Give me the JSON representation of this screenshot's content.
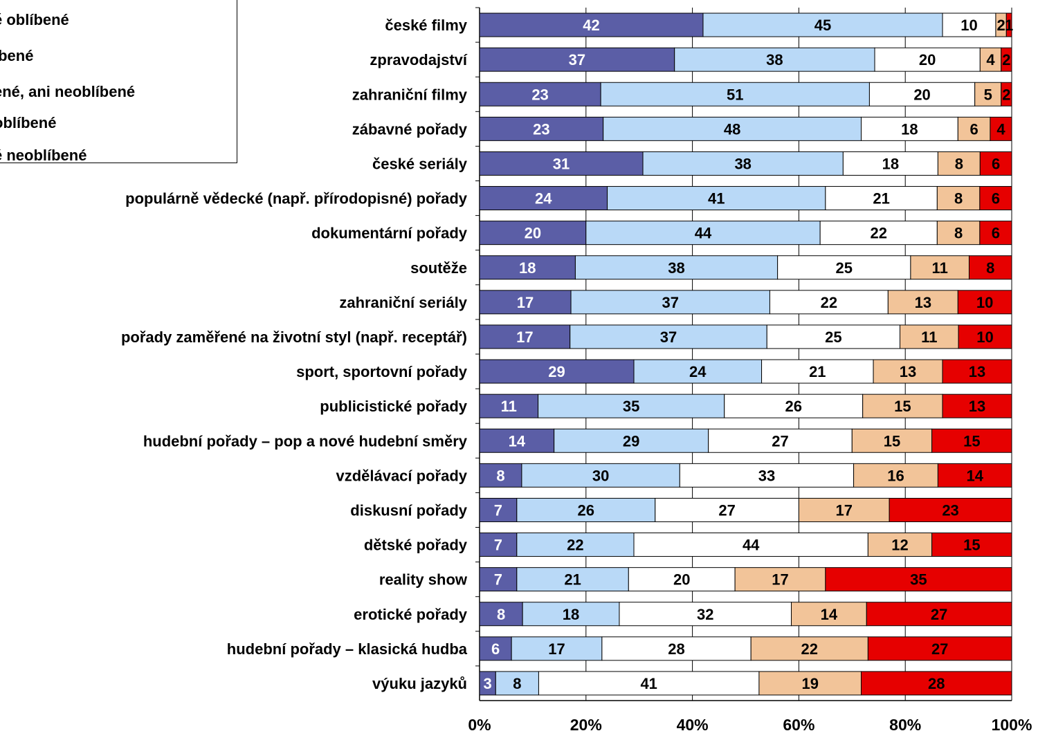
{
  "chart_data": {
    "type": "bar",
    "orientation": "horizontal",
    "stacked": "percent",
    "title": "",
    "xlabel": "",
    "ylabel": "",
    "xlim": [
      0,
      100
    ],
    "x_ticks": [
      "0%",
      "20%",
      "40%",
      "60%",
      "80%",
      "100%"
    ],
    "grid": true,
    "legend_position": "top-left",
    "categories": [
      "české filmy",
      "zpravodajství",
      "zahraniční filmy",
      "zábavné pořady",
      "české seriály",
      "populárně vědecké (např. přírodopisné) pořady",
      "dokumentární pořady",
      "soutěže",
      "zahraniční seriály",
      "pořady zaměřené na životní styl (např. receptář)",
      "sport, sportovní pořady",
      "publicistické pořady",
      "hudební pořady – pop a nové hudební směry",
      "vzdělávací pořady",
      "diskusní pořady",
      "dětské pořady",
      "reality show",
      "erotické pořady",
      "hudební pořady – klasická hudba",
      "výuku jazyků"
    ],
    "series": [
      {
        "name": "velmi oblíbené",
        "color": "#5b5ea6",
        "label_color": "#ffffff",
        "values": [
          42,
          37,
          23,
          23,
          31,
          24,
          20,
          18,
          17,
          17,
          29,
          11,
          14,
          8,
          7,
          7,
          7,
          8,
          6,
          3
        ]
      },
      {
        "name": "spíše oblíbené",
        "color": "#b9d9f7",
        "label_color": "#000000",
        "values": [
          45,
          38,
          51,
          48,
          38,
          41,
          44,
          38,
          37,
          37,
          24,
          35,
          29,
          30,
          26,
          22,
          21,
          18,
          17,
          8
        ]
      },
      {
        "name": "ani oblíbené, ani neoblíbené",
        "color": "#ffffff",
        "label_color": "#000000",
        "values": [
          10,
          20,
          20,
          18,
          18,
          21,
          22,
          25,
          22,
          25,
          21,
          26,
          27,
          33,
          27,
          44,
          20,
          32,
          28,
          41
        ]
      },
      {
        "name": "spíše neoblíbené",
        "color": "#f2c499",
        "label_color": "#000000",
        "values": [
          2,
          4,
          5,
          6,
          8,
          8,
          8,
          11,
          13,
          11,
          13,
          15,
          15,
          16,
          17,
          12,
          17,
          14,
          22,
          19
        ]
      },
      {
        "name": "velmi neoblíbené",
        "color": "#e60000",
        "label_color": "#000000",
        "values": [
          1,
          2,
          2,
          4,
          6,
          6,
          6,
          8,
          10,
          10,
          13,
          13,
          15,
          14,
          23,
          15,
          35,
          27,
          27,
          28
        ]
      }
    ]
  },
  "legend": {
    "items": [
      {
        "text": "ě oblíbené"
      },
      {
        "text": "íbené"
      },
      {
        "text": "ené, ani neoblíbené"
      },
      {
        "text": "oblíbené"
      },
      {
        "text": "é neoblíbené"
      }
    ]
  }
}
